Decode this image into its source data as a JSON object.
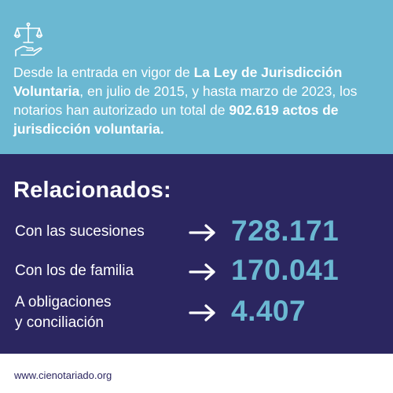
{
  "intro": {
    "p1": "Desde la entrada en vigor de ",
    "law": "La Ley de Jurisdicción Voluntaria",
    "p2": ", en julio de 2015, y hasta marzo de 2023, los notarios han autorizado un total de ",
    "total": "902.619 actos de jurisdicción voluntaria",
    "p3": "."
  },
  "icon": "scales-of-justice-in-hand-icon",
  "heading": "Relacionados:",
  "rows": [
    {
      "label1": "Con las sucesiones",
      "label2": "",
      "value": "728.171"
    },
    {
      "label1": "Con los de familia",
      "label2": "",
      "value": "170.041"
    },
    {
      "label1": "A obligaciones",
      "label2": "y conciliación",
      "value": "4.407"
    }
  ],
  "footer": "www.cienotariado.org",
  "colors": {
    "light_blue": "#6bb8d2",
    "navy": "#2b2660",
    "white": "#ffffff"
  }
}
